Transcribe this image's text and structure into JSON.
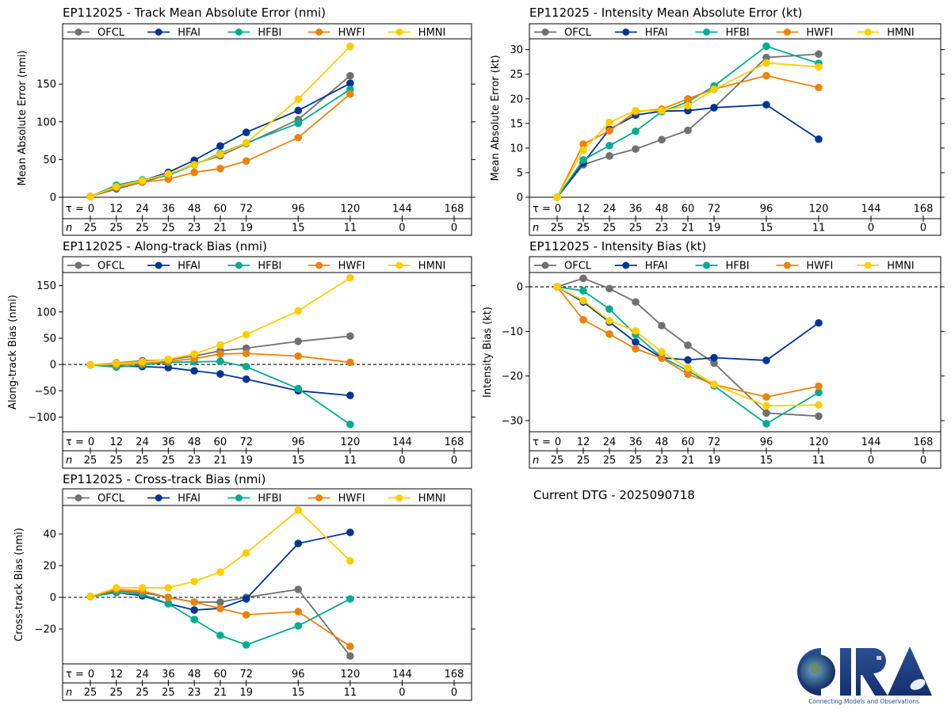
{
  "figure": {
    "current_dtg_label": "Current DTG - 2025090718",
    "logo": {
      "name": "CIRA",
      "tagline": "Connecting Models and Observations"
    }
  },
  "series_style": [
    {
      "name": "OFCL",
      "color": "#707070"
    },
    {
      "name": "HFAI",
      "color": "#003592"
    },
    {
      "name": "HFBI",
      "color": "#00AD8E"
    },
    {
      "name": "HWFI",
      "color": "#ED820A"
    },
    {
      "name": "HMNI",
      "color": "#FFCD00"
    }
  ],
  "lead_times": [
    0,
    12,
    24,
    36,
    48,
    60,
    72,
    96,
    120,
    144,
    168
  ],
  "sample_counts": [
    25,
    25,
    25,
    25,
    23,
    21,
    19,
    15,
    11,
    0,
    0
  ],
  "tau_label": "τ = ",
  "n_label": "n",
  "chart_data": [
    {
      "id": "track-mae",
      "type": "line",
      "title": "EP112025 - Track Mean Absolute Error (nmi)",
      "xlabel": "",
      "ylabel": "Mean Absolute Error (nmi)",
      "ylim": [
        0,
        210
      ],
      "yticks": [
        0,
        50,
        100,
        150
      ],
      "zero_line": false,
      "legend": "top",
      "x": [
        0,
        12,
        24,
        36,
        48,
        60,
        72,
        96,
        120
      ],
      "series": [
        {
          "name": "OFCL",
          "values": [
            1,
            11,
            20,
            30,
            44,
            55,
            71,
            103,
            161
          ]
        },
        {
          "name": "HFAI",
          "values": [
            1,
            13,
            22,
            33,
            49,
            68,
            86,
            115,
            151
          ]
        },
        {
          "name": "HFBI",
          "values": [
            1,
            16,
            23,
            29,
            43,
            58,
            72,
            98,
            143
          ]
        },
        {
          "name": "HWFI",
          "values": [
            1,
            13,
            20,
            24,
            33,
            38,
            48,
            79,
            137
          ]
        },
        {
          "name": "HMNI",
          "values": [
            1,
            14,
            22,
            31,
            43,
            57,
            72,
            130,
            200
          ]
        }
      ]
    },
    {
      "id": "intensity-mae",
      "type": "line",
      "title": "EP112025 - Intensity Mean Absolute Error (kt)",
      "xlabel": "",
      "ylabel": "Mean Absolute Error (kt)",
      "ylim": [
        0,
        32.2
      ],
      "yticks": [
        0,
        5,
        10,
        15,
        20,
        25,
        30
      ],
      "zero_line": false,
      "legend": "top",
      "x": [
        0,
        12,
        24,
        36,
        48,
        60,
        72,
        96,
        120
      ],
      "series": [
        {
          "name": "OFCL",
          "values": [
            0,
            6.6,
            8.4,
            9.8,
            11.7,
            13.6,
            18.2,
            28.4,
            29.1
          ]
        },
        {
          "name": "HFAI",
          "values": [
            0,
            7.0,
            13.8,
            16.7,
            17.5,
            17.6,
            18.2,
            18.8,
            11.8
          ]
        },
        {
          "name": "HFBI",
          "values": [
            0,
            7.6,
            10.5,
            13.4,
            17.4,
            19.4,
            22.6,
            30.7,
            27.2
          ]
        },
        {
          "name": "HWFI",
          "values": [
            0,
            10.8,
            13.5,
            17.4,
            17.9,
            20.0,
            22.0,
            24.7,
            22.3
          ]
        },
        {
          "name": "HMNI",
          "values": [
            0,
            9.6,
            15.2,
            17.6,
            17.6,
            18.6,
            21.9,
            27.3,
            26.5
          ]
        }
      ]
    },
    {
      "id": "along-track-bias",
      "type": "line",
      "title": "EP112025 - Along-track Bias (nmi)",
      "xlabel": "",
      "ylabel": "Along-track Bias (nmi)",
      "ylim": [
        -128,
        175
      ],
      "yticks": [
        -100,
        -50,
        0,
        50,
        100,
        150
      ],
      "zero_line": true,
      "legend": "top",
      "x": [
        0,
        12,
        24,
        36,
        48,
        60,
        72,
        96,
        120
      ],
      "series": [
        {
          "name": "OFCL",
          "values": [
            -1,
            3,
            7,
            9,
            16,
            26,
            31,
            44,
            54
          ]
        },
        {
          "name": "HFAI",
          "values": [
            -1,
            -3,
            -4,
            -6,
            -12,
            -18,
            -28,
            -50,
            -59
          ]
        },
        {
          "name": "HFBI",
          "values": [
            -1,
            -5,
            -1,
            4,
            5,
            6,
            -4,
            -46,
            -114
          ]
        },
        {
          "name": "HWFI",
          "values": [
            -1,
            -1,
            2,
            6,
            11,
            20,
            21,
            16,
            4
          ]
        },
        {
          "name": "HMNI",
          "values": [
            -1,
            2,
            5,
            10,
            20,
            37,
            57,
            102,
            165
          ]
        }
      ]
    },
    {
      "id": "intensity-bias",
      "type": "line",
      "title": "EP112025 - Intensity Bias (kt)",
      "xlabel": "",
      "ylabel": "Intensity Bias (kt)",
      "ylim": [
        -32.5,
        3.2
      ],
      "yticks": [
        -30,
        -20,
        -10,
        0
      ],
      "zero_line": true,
      "legend": "top",
      "x": [
        0,
        12,
        24,
        36,
        48,
        60,
        72,
        96,
        120
      ],
      "series": [
        {
          "name": "OFCL",
          "values": [
            0,
            1.9,
            -0.4,
            -3.4,
            -8.7,
            -13.1,
            -17.1,
            -28.3,
            -29.0
          ]
        },
        {
          "name": "HFAI",
          "values": [
            0,
            -3.4,
            -7.9,
            -12.4,
            -15.9,
            -16.4,
            -15.9,
            -16.5,
            -8.1
          ]
        },
        {
          "name": "HFBI",
          "values": [
            0,
            -0.9,
            -5.0,
            -10.7,
            -15.8,
            -18.8,
            -22.2,
            -30.7,
            -23.7
          ]
        },
        {
          "name": "HWFI",
          "values": [
            0,
            -7.4,
            -10.6,
            -13.9,
            -16.0,
            -19.6,
            -21.9,
            -24.7,
            -22.3
          ]
        },
        {
          "name": "HMNI",
          "values": [
            0,
            -3.1,
            -7.6,
            -9.9,
            -14.6,
            -18.2,
            -21.9,
            -26.7,
            -26.5
          ]
        }
      ]
    },
    {
      "id": "cross-track-bias",
      "type": "line",
      "title": "EP112025 - Cross-track Bias (nmi)",
      "xlabel": "",
      "ylabel": "Cross-track Bias (nmi)",
      "ylim": [
        -42,
        58
      ],
      "yticks": [
        -20,
        0,
        20,
        40
      ],
      "zero_line": true,
      "legend": "top",
      "x": [
        0,
        12,
        24,
        36,
        48,
        60,
        72,
        96,
        120
      ],
      "series": [
        {
          "name": "OFCL",
          "values": [
            0.5,
            4,
            3,
            0,
            -3,
            -3,
            0,
            5,
            -37
          ]
        },
        {
          "name": "HFAI",
          "values": [
            0.5,
            3,
            1,
            -4,
            -8,
            -7,
            -1,
            34,
            41
          ]
        },
        {
          "name": "HFBI",
          "values": [
            0.5,
            3,
            2,
            -4,
            -14,
            -24,
            -30,
            -18,
            -1
          ]
        },
        {
          "name": "HWFI",
          "values": [
            0.5,
            5,
            4,
            0,
            -3,
            -7,
            -11,
            -9,
            -31
          ]
        },
        {
          "name": "HMNI",
          "values": [
            0.5,
            6,
            6,
            6,
            10,
            16,
            28,
            55,
            23
          ]
        }
      ]
    }
  ]
}
